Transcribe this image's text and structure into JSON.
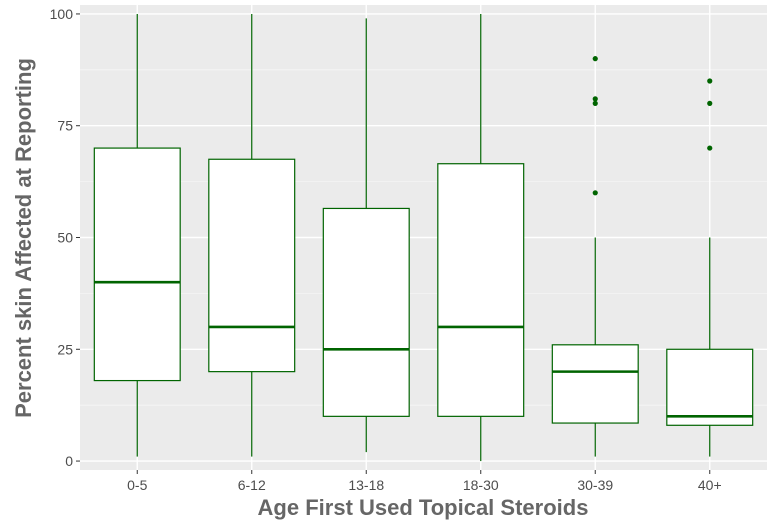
{
  "chart_data": {
    "type": "boxplot",
    "xlabel": "Age First Used Topical Steroids",
    "ylabel": "Percent skin Affected at Reporting",
    "ylim": [
      -2,
      102
    ],
    "yticks": [
      0,
      25,
      50,
      75,
      100
    ],
    "grid": true,
    "colors": {
      "panel": "#ebebeb",
      "grid_major": "#ffffff",
      "grid_minor": "#f5f5f5",
      "box_stroke": "#006400",
      "box_fill": "#ffffff",
      "tick_label": "#4d4d4d",
      "axis_title": "#666666"
    },
    "categories": [
      "0-5",
      "6-12",
      "13-18",
      "18-30",
      "30-39",
      "40+"
    ],
    "boxes": [
      {
        "category": "0-5",
        "min": 1,
        "q1": 18,
        "median": 40,
        "q3": 70,
        "max": 100,
        "outliers": []
      },
      {
        "category": "6-12",
        "min": 1,
        "q1": 20,
        "median": 30,
        "q3": 67.5,
        "max": 100,
        "outliers": []
      },
      {
        "category": "13-18",
        "min": 2,
        "q1": 10,
        "median": 25,
        "q3": 56.5,
        "max": 99,
        "outliers": []
      },
      {
        "category": "18-30",
        "min": 0,
        "q1": 10,
        "median": 30,
        "q3": 66.5,
        "max": 100,
        "outliers": []
      },
      {
        "category": "30-39",
        "min": 1,
        "q1": 8.5,
        "median": 20,
        "q3": 26,
        "max": 50,
        "outliers": [
          60,
          80,
          81,
          90
        ]
      },
      {
        "category": "40+",
        "min": 1,
        "q1": 8,
        "median": 10,
        "q3": 25,
        "max": 50,
        "outliers": [
          70,
          80,
          85
        ]
      }
    ]
  }
}
